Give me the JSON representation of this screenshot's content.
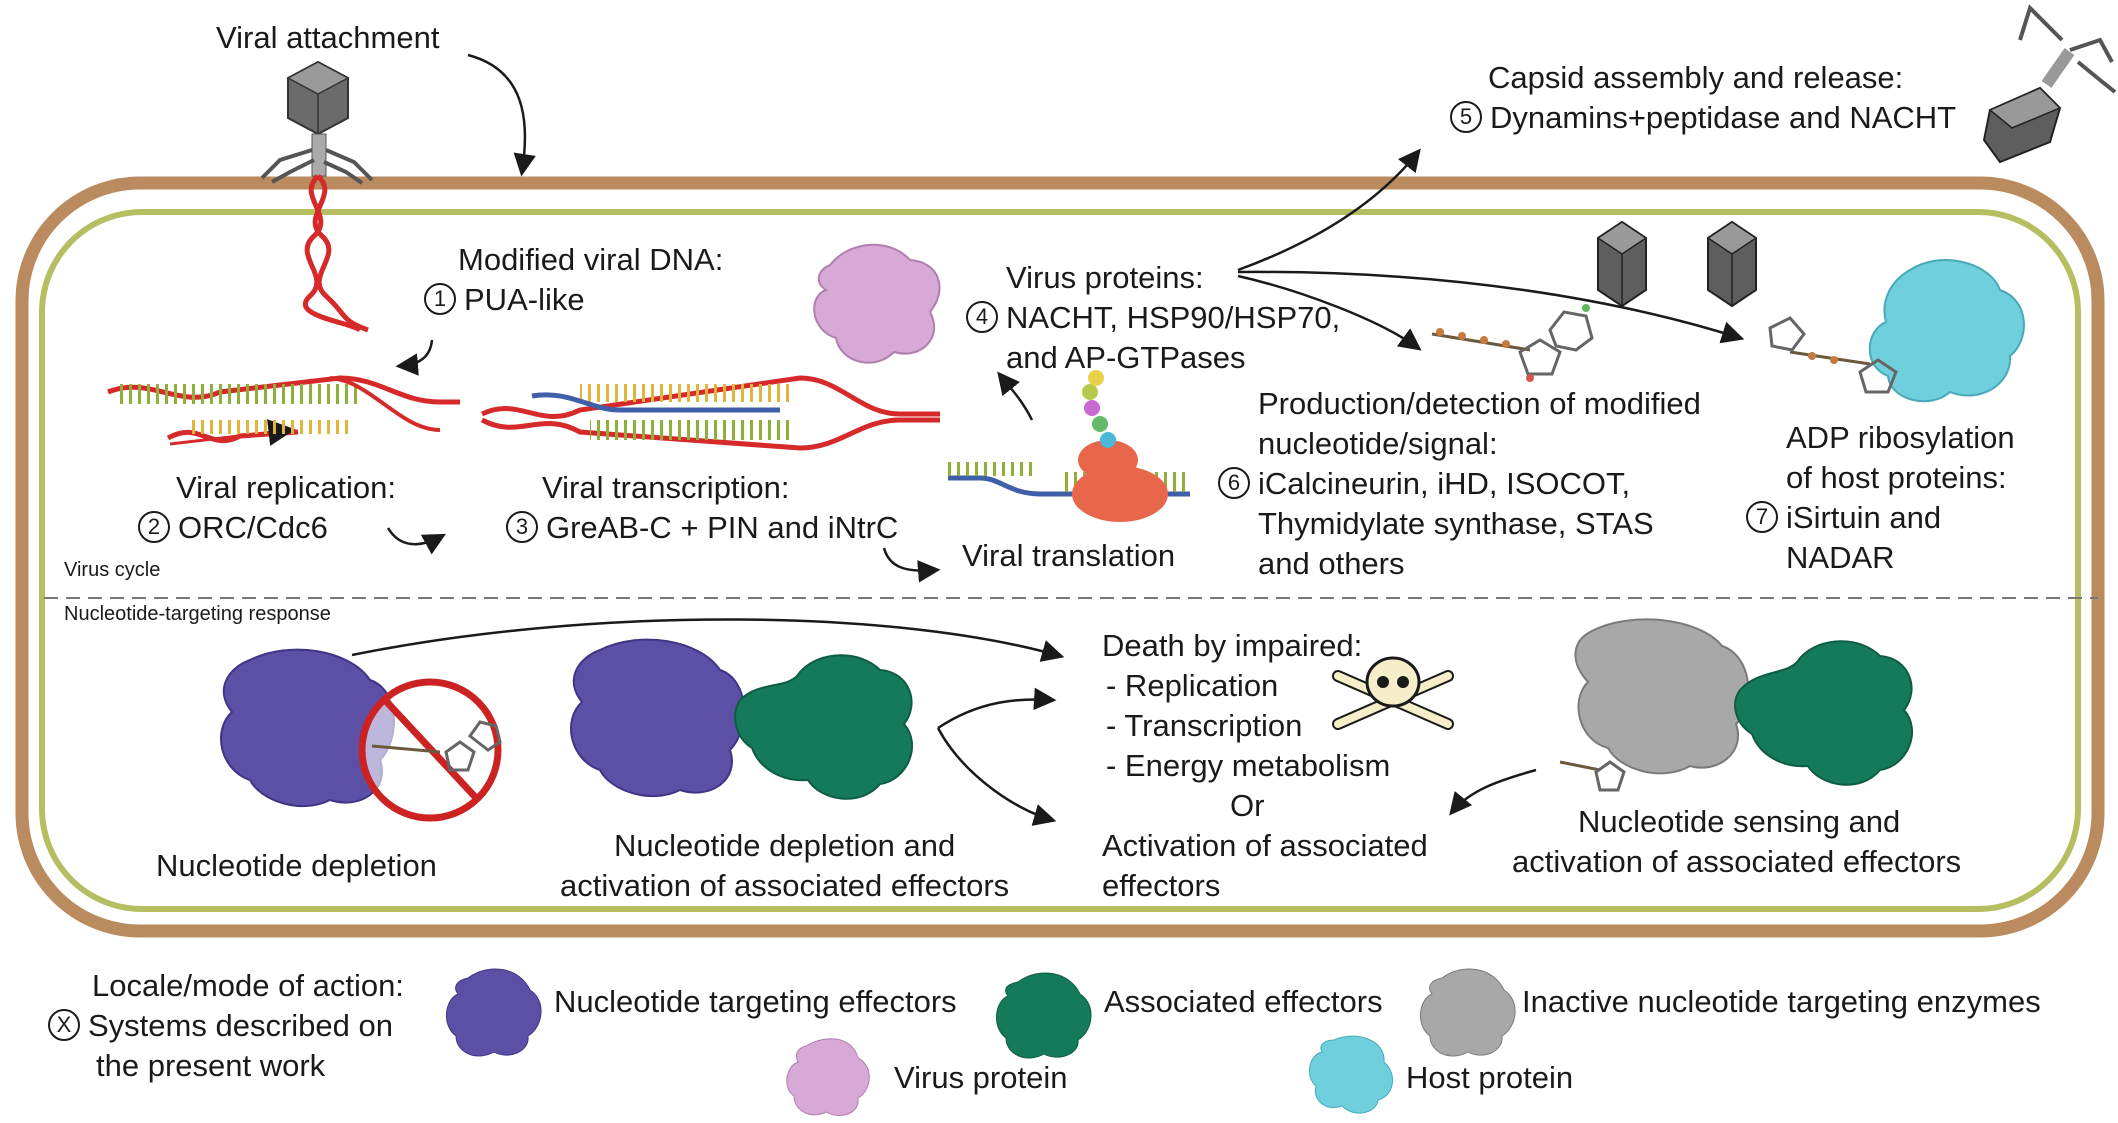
{
  "colors": {
    "outer_membrane": "#b98b5e",
    "inner_membrane": "#b5bf61",
    "dna_red": "#d62a2a",
    "dna_green": "#8fae3c",
    "dna_yellow": "#e0b53c",
    "rna_blue": "#3f5fa8",
    "nucleotide_targeting_effector": "#5b4fa6",
    "associated_effector": "#157a5a",
    "inactive_enzyme": "#a8a8a8",
    "virus_protein": "#d6a9d6",
    "host_protein": "#6fcfdc",
    "ribosome": "#e8674a",
    "prohibition": "#cc2222"
  },
  "labels": {
    "viral_attachment": "Viral attachment",
    "capsid_title": "Capsid assembly and release:",
    "capsid_num": "5",
    "capsid_systems": "Dynamins+peptidase and NACHT",
    "modified_dna_title": "Modified viral DNA:",
    "modified_dna_num": "1",
    "modified_dna_systems": "PUA-like",
    "virus_proteins_title": "Virus proteins:",
    "virus_proteins_num": "4",
    "virus_proteins_line2": "NACHT, HSP90/HSP70,",
    "virus_proteins_line3": "and AP-GTPases",
    "replication_title": "Viral replication:",
    "replication_num": "2",
    "replication_systems": "ORC/Cdc6",
    "transcription_title": "Viral transcription:",
    "transcription_num": "3",
    "transcription_systems": "GreAB-C + PIN and iNtrC",
    "translation": "Viral translation",
    "production_line1": "Production/detection of modified",
    "production_line2": "nucleotide/signal:",
    "production_num": "6",
    "production_line3": "iCalcineurin,  iHD,  ISOCOT,",
    "production_line4": "Thymidylate synthase, STAS",
    "production_line5": "and others",
    "adp_line1": "ADP ribosylation",
    "adp_line2": "of host proteins:",
    "adp_num": "7",
    "adp_line3": "iSirtuin and",
    "adp_line4": "NADAR",
    "virus_cycle": "Virus cycle",
    "nucleotide_response": "Nucleotide-targeting response",
    "death_title": "Death by impaired:",
    "death_item1": "- Replication",
    "death_item2": "- Transcription",
    "death_item3": "- Energy metabolism",
    "death_or": "Or",
    "death_activation1": "Activation of associated",
    "death_activation2": "effectors",
    "depletion": "Nucleotide depletion",
    "depletion_activation1": "Nucleotide depletion and",
    "depletion_activation2": "activation of associated effectors",
    "sensing1": "Nucleotide sensing and",
    "sensing2": "activation of associated effectors"
  },
  "legend": {
    "locale_title": "Locale/mode of action:",
    "locale_symbol": "X",
    "locale_line2": "Systems described on",
    "locale_line3": "the present work",
    "nucleotide_targeting": "Nucleotide targeting effectors",
    "associated": "Associated effectors",
    "inactive": "Inactive nucleotide targeting enzymes",
    "virus_protein": "Virus protein",
    "host_protein": "Host protein"
  },
  "icons": [
    "phage-icon",
    "capsid-icon",
    "skull-crossbones-icon",
    "ribosome-icon",
    "nucleotide-icon",
    "prohibition-icon",
    "protein-blob-icon"
  ]
}
